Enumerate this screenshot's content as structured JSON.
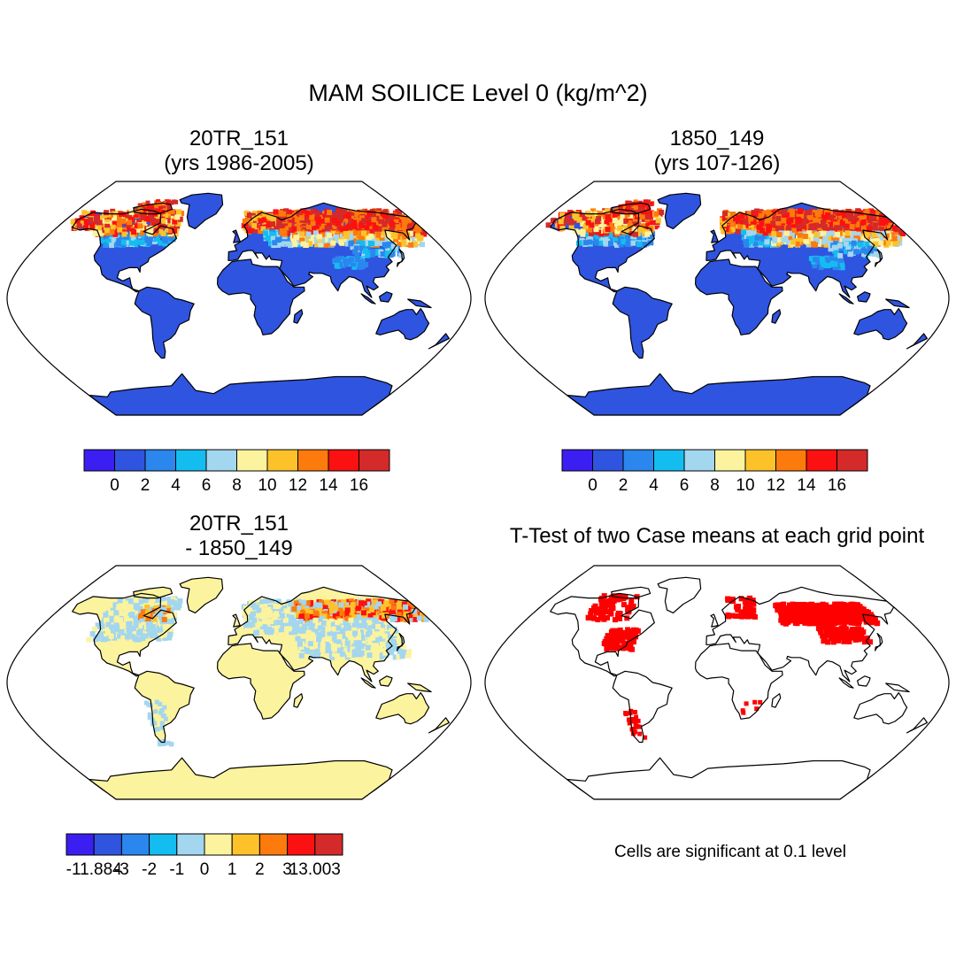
{
  "title": "MAM SOILICE Level 0 (kg/m^2)",
  "chart_data": [
    {
      "type": "heatmap",
      "panel": "top-left",
      "title_line1": "20TR_151",
      "title_line2": "(yrs 1986-2005)",
      "projection": "robinson",
      "colorbar": {
        "colors": [
          "#3b1ff2",
          "#2f54e0",
          "#2b86ee",
          "#14bdf0",
          "#a3d6ef",
          "#fcf39e",
          "#fdc22a",
          "#fd7a0c",
          "#fb1111",
          "#d42a2a"
        ],
        "tick_labels": [
          "0",
          "2",
          "4",
          "6",
          "8",
          "10",
          "12",
          "14",
          "16"
        ]
      },
      "regions": {
        "tropics_midlat": 1,
        "north_america_north": 12,
        "siberia": 14,
        "scandinavia": 12,
        "tibet": 5
      }
    },
    {
      "type": "heatmap",
      "panel": "top-right",
      "title_line1": "1850_149",
      "title_line2": "(yrs 107-126)",
      "projection": "robinson",
      "colorbar": {
        "colors": [
          "#3b1ff2",
          "#2f54e0",
          "#2b86ee",
          "#14bdf0",
          "#a3d6ef",
          "#fcf39e",
          "#fdc22a",
          "#fd7a0c",
          "#fb1111",
          "#d42a2a"
        ],
        "tick_labels": [
          "0",
          "2",
          "4",
          "6",
          "8",
          "10",
          "12",
          "14",
          "16"
        ]
      },
      "regions": {
        "tropics_midlat": 1,
        "north_america_north": 12,
        "siberia": 15,
        "scandinavia": 12,
        "tibet": 5
      }
    },
    {
      "type": "heatmap",
      "panel": "bottom-left",
      "title_line1": "20TR_151",
      "title_line2": "- 1850_149",
      "projection": "robinson",
      "colorbar": {
        "colors": [
          "#3b1ff2",
          "#2f54e0",
          "#2b86ee",
          "#14bdf0",
          "#a3d6ef",
          "#fcf39e",
          "#fdc22a",
          "#fd7a0c",
          "#fb1111",
          "#d42a2a"
        ],
        "tick_labels": [
          "-11.884",
          "-3",
          "-2",
          "-1",
          "0",
          "1",
          "2",
          "3",
          "13.003"
        ]
      },
      "regions": {
        "global": 0.5,
        "north_america_north": -0.5,
        "siberia": 2.5,
        "eurasia_mid": -0.5
      }
    },
    {
      "type": "heatmap",
      "panel": "bottom-right",
      "title": "T-Test of two Case means at each grid point",
      "projection": "robinson",
      "significance_color": "#ff0000",
      "significant_regions": [
        "eastern North America",
        "northern Canada",
        "Scandinavia",
        "Siberia",
        "northern China",
        "southern South America"
      ]
    }
  ],
  "sig_note": "Cells are significant at 0.1 level"
}
